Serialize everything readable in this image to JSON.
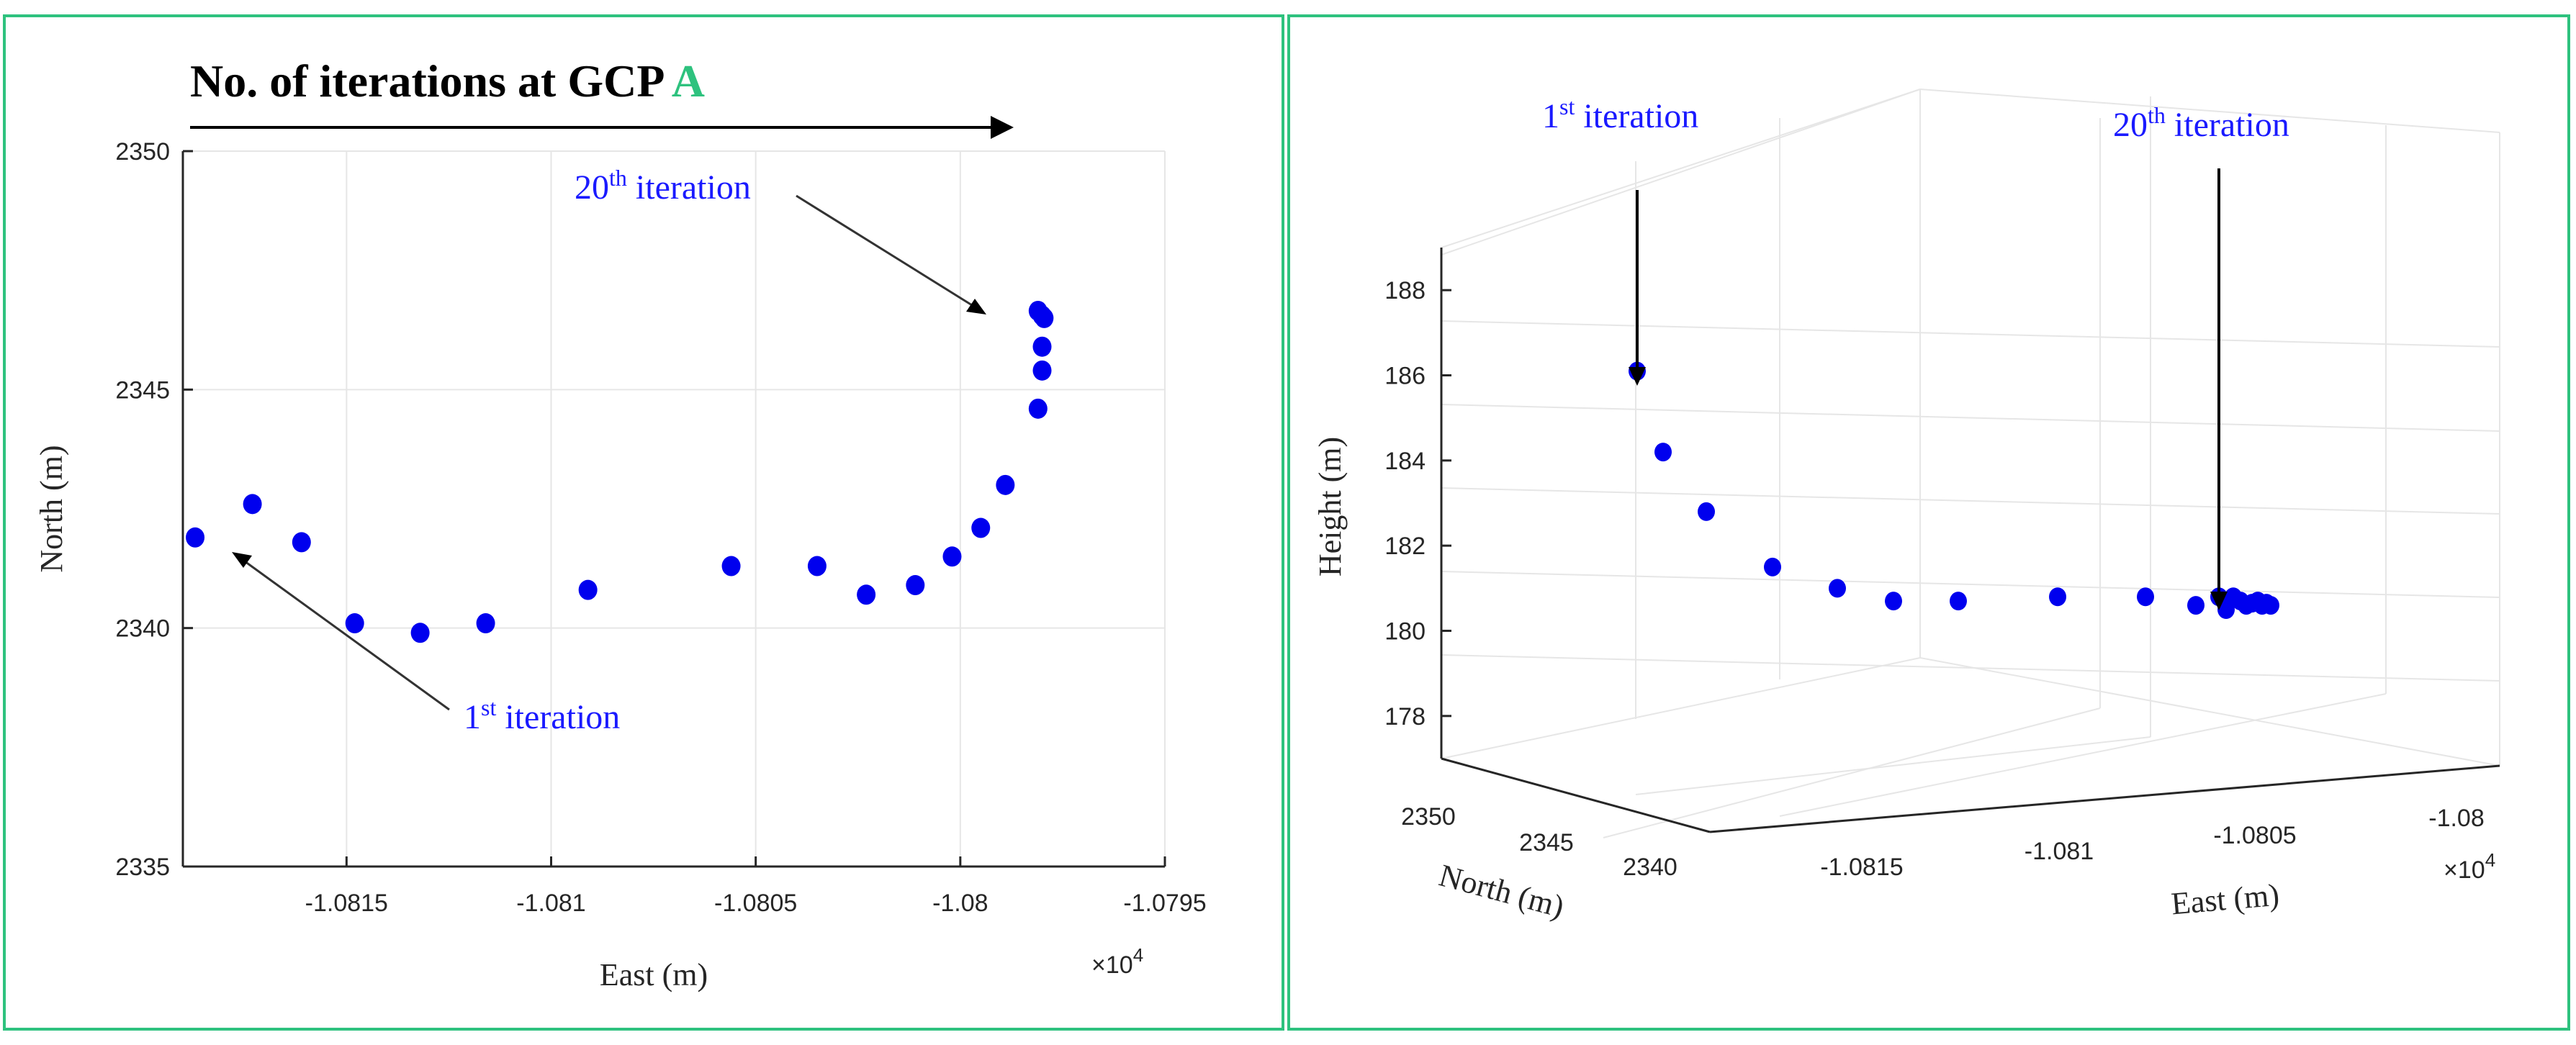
{
  "colors": {
    "panel_border": "#2ec27e",
    "point": "#0000ee",
    "annotation_text": "#1a1aff",
    "title_accent": "#2ec27e",
    "grid": "#e6e6e6",
    "axis": "#262626"
  },
  "chart_data": [
    {
      "type": "scatter",
      "title": "No. of iterations at GCP",
      "title_accent": "A",
      "xlabel": "East (m)",
      "ylabel": "North (m)",
      "xlim": [
        -10819,
        -10795
      ],
      "ylim": [
        2335,
        2350
      ],
      "xticks": [
        -10815,
        -10810,
        -10805,
        -10800,
        -10795
      ],
      "xtick_labels": [
        "-1.0815",
        "-1.081",
        "-1.0805",
        "-1.08",
        "-1.0795"
      ],
      "yticks": [
        2335,
        2340,
        2345,
        2350
      ],
      "ytick_labels": [
        "2335",
        "2340",
        "2345",
        "2350"
      ],
      "x_exponent": {
        "base": "×10",
        "exp": "4"
      },
      "points": [
        {
          "x": -10818.7,
          "y": 2341.9
        },
        {
          "x": -10817.3,
          "y": 2342.6
        },
        {
          "x": -10816.1,
          "y": 2341.8
        },
        {
          "x": -10814.8,
          "y": 2340.1
        },
        {
          "x": -10813.2,
          "y": 2339.9
        },
        {
          "x": -10811.6,
          "y": 2340.1
        },
        {
          "x": -10809.1,
          "y": 2340.8
        },
        {
          "x": -10805.6,
          "y": 2341.3
        },
        {
          "x": -10803.5,
          "y": 2341.3
        },
        {
          "x": -10802.3,
          "y": 2340.7
        },
        {
          "x": -10801.1,
          "y": 2340.9
        },
        {
          "x": -10800.2,
          "y": 2341.5
        },
        {
          "x": -10799.5,
          "y": 2342.1
        },
        {
          "x": -10798.9,
          "y": 2343.0
        },
        {
          "x": -10798.1,
          "y": 2344.6
        },
        {
          "x": -10798.0,
          "y": 2345.4
        },
        {
          "x": -10798.0,
          "y": 2345.9
        },
        {
          "x": -10797.95,
          "y": 2346.5
        },
        {
          "x": -10798.1,
          "y": 2346.65
        },
        {
          "x": -10798.0,
          "y": 2346.55
        }
      ],
      "annotations": [
        {
          "base": "20",
          "sup": "th",
          "text": " iteration",
          "target_index": 19
        },
        {
          "base": "1",
          "sup": "st",
          "text": " iteration",
          "target_index": 0
        }
      ]
    },
    {
      "type": "scatter",
      "title": "",
      "xlabel": "East (m)",
      "ylabel": "North (m)",
      "zlabel": "Height (m)",
      "zlim": [
        177,
        189
      ],
      "zticks": [
        178,
        180,
        182,
        184,
        186,
        188
      ],
      "ztick_labels": [
        "178",
        "180",
        "182",
        "184",
        "186",
        "188"
      ],
      "xtick_labels": [
        "-1.0815",
        "-1.081",
        "-1.0805",
        "-1.08"
      ],
      "ytick_labels": [
        "2350",
        "2345",
        "2340"
      ],
      "x_exponent": {
        "base": "×10",
        "exp": "4"
      },
      "points": [
        {
          "z": 186.2
        },
        {
          "z": 184.3
        },
        {
          "z": 182.9
        },
        {
          "z": 181.6
        },
        {
          "z": 181.1
        },
        {
          "z": 180.8
        },
        {
          "z": 180.8
        },
        {
          "z": 180.9
        },
        {
          "z": 180.9
        },
        {
          "z": 180.7
        },
        {
          "z": 180.9
        },
        {
          "z": 180.6
        },
        {
          "z": 180.9
        },
        {
          "z": 180.8
        },
        {
          "z": 180.7
        },
        {
          "z": 180.75
        },
        {
          "z": 180.8
        },
        {
          "z": 180.7
        },
        {
          "z": 180.75
        },
        {
          "z": 180.7
        }
      ],
      "annotations": [
        {
          "base": "1",
          "sup": "st",
          "text": " iteration",
          "target_index": 0
        },
        {
          "base": "20",
          "sup": "th",
          "text": " iteration",
          "target_index": 19
        }
      ]
    }
  ]
}
